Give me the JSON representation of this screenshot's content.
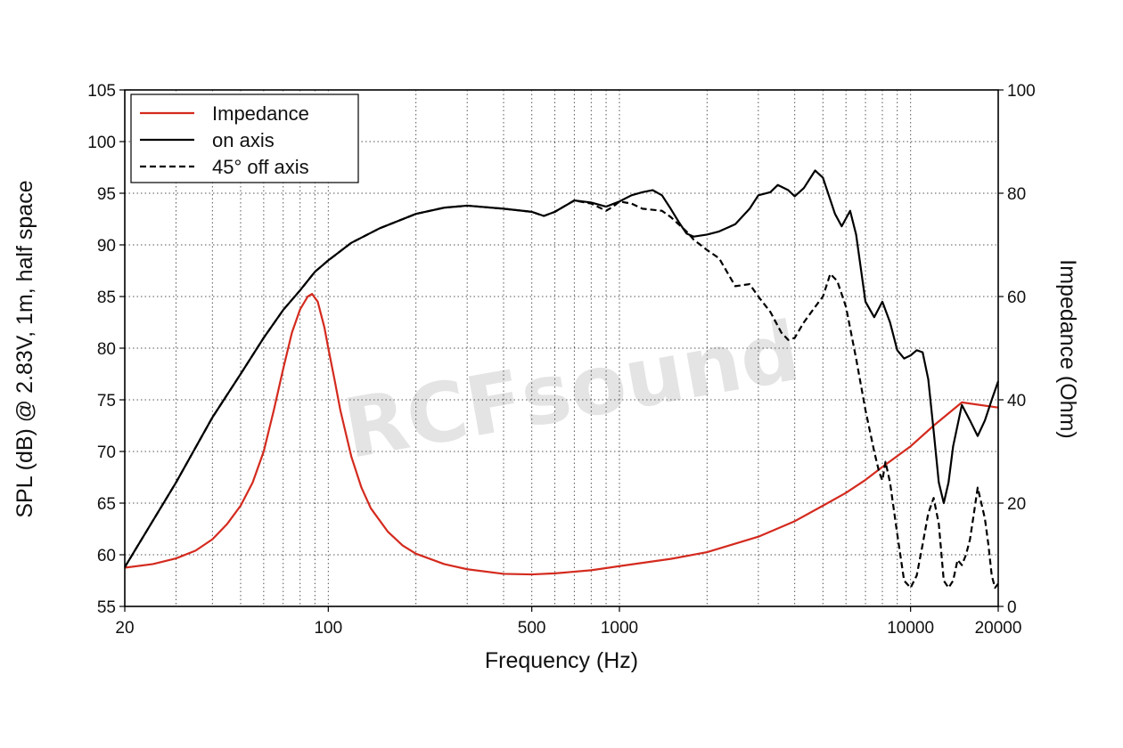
{
  "chart_data": {
    "type": "line",
    "xlabel": "Frequency (Hz)",
    "ylabel": "SPL (dB) @ 2.83V, 1m, half space",
    "y2label": "Impedance (Ohm)",
    "x_scale": "log",
    "xlim": [
      20,
      20000
    ],
    "ylim": [
      55,
      105
    ],
    "y2lim": [
      0,
      100
    ],
    "grid": true,
    "legend_position": "top-left",
    "watermark": "RCFsound",
    "x_ticks": [
      20,
      100,
      500,
      1000,
      10000,
      20000
    ],
    "x_tick_labels": [
      "20",
      "100",
      "500",
      "1000",
      "10000",
      "20000"
    ],
    "y_ticks": [
      55,
      60,
      65,
      70,
      75,
      80,
      85,
      90,
      95,
      100,
      105
    ],
    "y_tick_labels": [
      "55",
      "60",
      "65",
      "70",
      "75",
      "80",
      "85",
      "90",
      "95",
      "100",
      "105"
    ],
    "y2_ticks": [
      0,
      20,
      40,
      60,
      80,
      100
    ],
    "y2_tick_labels": [
      "0",
      "20",
      "40",
      "60",
      "80",
      "100"
    ],
    "series": [
      {
        "name": "Impedance",
        "axis": "right",
        "color": "#d42a1e",
        "style": "solid",
        "points": [
          [
            20,
            7.5
          ],
          [
            25,
            8.2
          ],
          [
            30,
            9.3
          ],
          [
            35,
            10.8
          ],
          [
            40,
            13
          ],
          [
            45,
            16
          ],
          [
            50,
            19.5
          ],
          [
            55,
            24
          ],
          [
            60,
            30
          ],
          [
            65,
            38
          ],
          [
            70,
            46
          ],
          [
            75,
            53
          ],
          [
            80,
            57.5
          ],
          [
            85,
            60
          ],
          [
            88,
            60.5
          ],
          [
            92,
            59
          ],
          [
            97,
            54
          ],
          [
            100,
            50
          ],
          [
            105,
            44
          ],
          [
            110,
            38
          ],
          [
            120,
            29
          ],
          [
            130,
            23
          ],
          [
            140,
            19
          ],
          [
            160,
            14.5
          ],
          [
            180,
            11.8
          ],
          [
            200,
            10.2
          ],
          [
            250,
            8.2
          ],
          [
            300,
            7.2
          ],
          [
            400,
            6.3
          ],
          [
            500,
            6.2
          ],
          [
            600,
            6.4
          ],
          [
            800,
            7
          ],
          [
            1000,
            7.8
          ],
          [
            1500,
            9.2
          ],
          [
            2000,
            10.5
          ],
          [
            3000,
            13.5
          ],
          [
            4000,
            16.5
          ],
          [
            5000,
            19.5
          ],
          [
            6000,
            22
          ],
          [
            7000,
            24.5
          ],
          [
            8000,
            27
          ],
          [
            10000,
            31
          ],
          [
            12000,
            35
          ],
          [
            15000,
            39.5
          ],
          [
            20000,
            38.5
          ]
        ]
      },
      {
        "name": "on axis",
        "axis": "left",
        "color": "#000000",
        "style": "solid",
        "points": [
          [
            20,
            58.8
          ],
          [
            30,
            67
          ],
          [
            40,
            73.3
          ],
          [
            50,
            77.5
          ],
          [
            60,
            81
          ],
          [
            70,
            83.7
          ],
          [
            80,
            85.6
          ],
          [
            90,
            87.4
          ],
          [
            100,
            88.5
          ],
          [
            120,
            90.2
          ],
          [
            150,
            91.6
          ],
          [
            200,
            93
          ],
          [
            250,
            93.6
          ],
          [
            300,
            93.8
          ],
          [
            400,
            93.5
          ],
          [
            500,
            93.2
          ],
          [
            550,
            92.8
          ],
          [
            600,
            93.2
          ],
          [
            700,
            94.3
          ],
          [
            800,
            94.1
          ],
          [
            900,
            93.7
          ],
          [
            1000,
            94.2
          ],
          [
            1100,
            94.8
          ],
          [
            1200,
            95.1
          ],
          [
            1300,
            95.3
          ],
          [
            1400,
            94.8
          ],
          [
            1500,
            93.5
          ],
          [
            1600,
            92.2
          ],
          [
            1700,
            91.1
          ],
          [
            1800,
            90.8
          ],
          [
            2000,
            91
          ],
          [
            2200,
            91.3
          ],
          [
            2500,
            92
          ],
          [
            2800,
            93.5
          ],
          [
            3000,
            94.8
          ],
          [
            3300,
            95.1
          ],
          [
            3500,
            95.8
          ],
          [
            3800,
            95.3
          ],
          [
            4000,
            94.7
          ],
          [
            4300,
            95.5
          ],
          [
            4700,
            97.2
          ],
          [
            5000,
            96.5
          ],
          [
            5500,
            93
          ],
          [
            5800,
            91.8
          ],
          [
            6200,
            93.3
          ],
          [
            6500,
            91
          ],
          [
            7000,
            84.5
          ],
          [
            7500,
            83
          ],
          [
            8000,
            84.5
          ],
          [
            8500,
            82.5
          ],
          [
            9000,
            79.8
          ],
          [
            9500,
            79
          ],
          [
            10000,
            79.3
          ],
          [
            10500,
            79.8
          ],
          [
            11000,
            79.6
          ],
          [
            11500,
            77
          ],
          [
            12000,
            72
          ],
          [
            12500,
            67
          ],
          [
            13000,
            65
          ],
          [
            13500,
            67
          ],
          [
            14000,
            70.5
          ],
          [
            15000,
            74.5
          ],
          [
            16000,
            73
          ],
          [
            17000,
            71.5
          ],
          [
            18000,
            73
          ],
          [
            19000,
            75
          ],
          [
            20000,
            76.8
          ]
        ]
      },
      {
        "name": "45° off axis",
        "axis": "left",
        "color": "#000000",
        "style": "dashed",
        "points": [
          [
            20,
            58.8
          ],
          [
            30,
            67
          ],
          [
            40,
            73.3
          ],
          [
            50,
            77.5
          ],
          [
            60,
            81
          ],
          [
            70,
            83.7
          ],
          [
            80,
            85.6
          ],
          [
            90,
            87.4
          ],
          [
            100,
            88.5
          ],
          [
            120,
            90.2
          ],
          [
            150,
            91.6
          ],
          [
            200,
            93
          ],
          [
            250,
            93.6
          ],
          [
            300,
            93.8
          ],
          [
            400,
            93.5
          ],
          [
            500,
            93.2
          ],
          [
            550,
            92.8
          ],
          [
            600,
            93.2
          ],
          [
            700,
            94.3
          ],
          [
            800,
            94
          ],
          [
            900,
            93.3
          ],
          [
            950,
            93.7
          ],
          [
            1000,
            94.2
          ],
          [
            1100,
            94
          ],
          [
            1200,
            93.5
          ],
          [
            1400,
            93.3
          ],
          [
            1500,
            92.7
          ],
          [
            1700,
            91.3
          ],
          [
            1800,
            90.5
          ],
          [
            2000,
            89.5
          ],
          [
            2200,
            88.7
          ],
          [
            2500,
            86
          ],
          [
            2800,
            86.2
          ],
          [
            3000,
            85
          ],
          [
            3300,
            83.5
          ],
          [
            3600,
            81.5
          ],
          [
            3800,
            80.8
          ],
          [
            4000,
            81
          ],
          [
            4300,
            82.5
          ],
          [
            4700,
            84
          ],
          [
            5000,
            85
          ],
          [
            5300,
            87.2
          ],
          [
            5600,
            86.5
          ],
          [
            6000,
            84
          ],
          [
            6500,
            79
          ],
          [
            7000,
            74
          ],
          [
            7500,
            70
          ],
          [
            7800,
            68
          ],
          [
            8000,
            67.2
          ],
          [
            8200,
            69
          ],
          [
            8500,
            67
          ],
          [
            9000,
            62
          ],
          [
            9500,
            57.5
          ],
          [
            10000,
            56.8
          ],
          [
            10500,
            58
          ],
          [
            11000,
            61
          ],
          [
            11500,
            64
          ],
          [
            12000,
            65.5
          ],
          [
            12500,
            63
          ],
          [
            13000,
            57.5
          ],
          [
            13500,
            56.8
          ],
          [
            14000,
            57.5
          ],
          [
            14500,
            59.5
          ],
          [
            15000,
            59
          ],
          [
            15500,
            60
          ],
          [
            16000,
            61.5
          ],
          [
            16500,
            64
          ],
          [
            17000,
            66.5
          ],
          [
            17500,
            65
          ],
          [
            18000,
            63.5
          ],
          [
            18500,
            61
          ],
          [
            19000,
            58
          ],
          [
            19500,
            56.8
          ],
          [
            20000,
            57.2
          ]
        ]
      }
    ]
  }
}
